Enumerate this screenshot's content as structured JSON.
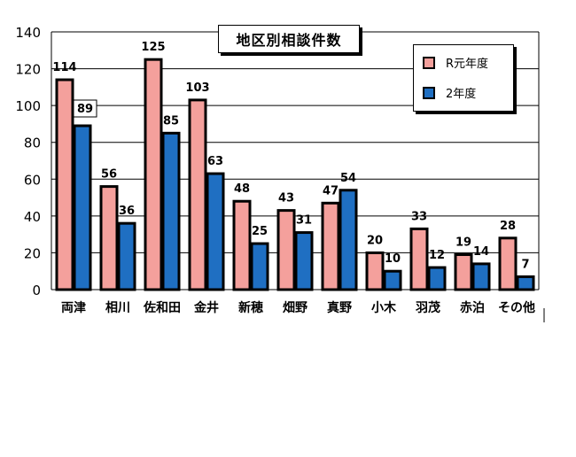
{
  "colors": {
    "series1": "#f4a09c",
    "series2": "#1f6fc2"
  },
  "chart_data": {
    "type": "bar",
    "title": "地区別相談件数",
    "categories": [
      "両津",
      "相川",
      "佐和田",
      "金井",
      "新穂",
      "畑野",
      "真野",
      "小木",
      "羽茂",
      "赤泊",
      "その他"
    ],
    "series": [
      {
        "name": "R元年度",
        "values": [
          114,
          56,
          125,
          103,
          48,
          43,
          47,
          20,
          33,
          19,
          28
        ]
      },
      {
        "name": "2年度",
        "values": [
          89,
          36,
          85,
          63,
          25,
          31,
          54,
          10,
          12,
          14,
          7
        ]
      }
    ],
    "ylim": [
      0,
      140
    ],
    "yticks": [
      0,
      20,
      40,
      60,
      80,
      100,
      120,
      140
    ],
    "grid": true,
    "legend": "top-right"
  }
}
